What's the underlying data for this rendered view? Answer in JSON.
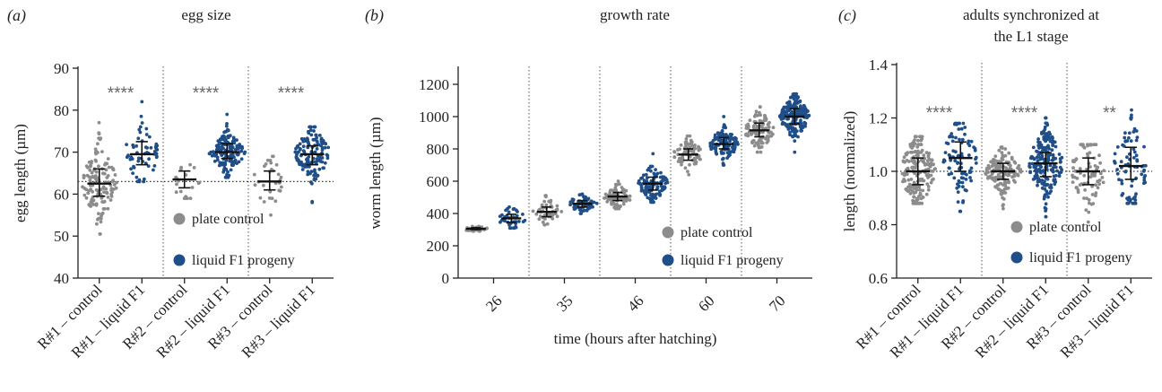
{
  "colors": {
    "control": "#8c8c8c",
    "liquid": "#1f4e88",
    "median": "#111111"
  },
  "legend": {
    "control": "plate control",
    "liquid": "liquid F1 progeny"
  },
  "chart_data": [
    {
      "panel": "(a)",
      "type": "scatter",
      "title": "egg size",
      "ylabel": "egg length (µm)",
      "xlabel": "",
      "ylim": [
        40,
        90
      ],
      "yticks": [
        40,
        50,
        60,
        70,
        80,
        90
      ],
      "reference_line": 63,
      "categories": [
        "R#1 – control",
        "R#1 – liquid F1",
        "R#2 – control",
        "R#2 – liquid F1",
        "R#3 – control",
        "R#3 – liquid F1"
      ],
      "groups": [
        {
          "label": "R#1 – control",
          "series": "control",
          "median": 62.5,
          "q1": 59.5,
          "q3": 66,
          "min": 50.5,
          "max": 77,
          "n": 140
        },
        {
          "label": "R#1 – liquid F1",
          "series": "liquid",
          "median": 69.5,
          "q1": 67,
          "q3": 72.5,
          "min": 63,
          "max": 82,
          "n": 60
        },
        {
          "label": "R#2 – control",
          "series": "control",
          "median": 63.5,
          "q1": 61.5,
          "q3": 65.5,
          "min": 59,
          "max": 67,
          "n": 20
        },
        {
          "label": "R#2 – liquid F1",
          "series": "liquid",
          "median": 70,
          "q1": 68.5,
          "q3": 72,
          "min": 64,
          "max": 79,
          "n": 150
        },
        {
          "label": "R#3 – control",
          "series": "control",
          "median": 63,
          "q1": 61,
          "q3": 65.5,
          "min": 55,
          "max": 69,
          "n": 30
        },
        {
          "label": "R#3 – liquid F1",
          "series": "liquid",
          "median": 69.5,
          "q1": 67,
          "q3": 71.5,
          "min": 58,
          "max": 76,
          "n": 150
        }
      ],
      "annotations": [
        "****",
        "****",
        "****"
      ],
      "separators_after": [
        2,
        4
      ]
    },
    {
      "panel": "(b)",
      "type": "scatter",
      "title": "growth rate",
      "ylabel": "worm length (µm)",
      "xlabel": "time (hours after hatching)",
      "ylim": [
        0,
        1300
      ],
      "yticks": [
        0,
        200,
        400,
        600,
        800,
        1000,
        1200
      ],
      "categories": [
        "26",
        "35",
        "46",
        "60",
        "70"
      ],
      "groups": [
        {
          "label": "26",
          "series": "control",
          "median": 305,
          "q1": 300,
          "q3": 312,
          "min": 290,
          "max": 320,
          "n": 30
        },
        {
          "label": "26",
          "series": "liquid",
          "median": 370,
          "q1": 345,
          "q3": 395,
          "min": 310,
          "max": 440,
          "n": 40
        },
        {
          "label": "35",
          "series": "control",
          "median": 410,
          "q1": 380,
          "q3": 440,
          "min": 330,
          "max": 510,
          "n": 50
        },
        {
          "label": "35",
          "series": "liquid",
          "median": 460,
          "q1": 440,
          "q3": 480,
          "min": 400,
          "max": 520,
          "n": 60
        },
        {
          "label": "46",
          "series": "control",
          "median": 505,
          "q1": 480,
          "q3": 530,
          "min": 430,
          "max": 600,
          "n": 90
        },
        {
          "label": "46",
          "series": "liquid",
          "median": 585,
          "q1": 545,
          "q3": 625,
          "min": 470,
          "max": 770,
          "n": 110
        },
        {
          "label": "60",
          "series": "control",
          "median": 765,
          "q1": 730,
          "q3": 800,
          "min": 640,
          "max": 880,
          "n": 80
        },
        {
          "label": "60",
          "series": "liquid",
          "median": 830,
          "q1": 800,
          "q3": 870,
          "min": 700,
          "max": 1000,
          "n": 120
        },
        {
          "label": "70",
          "series": "control",
          "median": 915,
          "q1": 875,
          "q3": 960,
          "min": 780,
          "max": 1060,
          "n": 110
        },
        {
          "label": "70",
          "series": "liquid",
          "median": 1000,
          "q1": 955,
          "q3": 1050,
          "min": 780,
          "max": 1140,
          "n": 200
        }
      ],
      "separators_after": [
        2,
        4,
        6,
        8
      ]
    },
    {
      "panel": "(c)",
      "type": "scatter",
      "title": "adults synchronized at the L1 stage",
      "ylabel": "length (normalized)",
      "xlabel": "",
      "ylim": [
        0.6,
        1.4
      ],
      "yticks": [
        0.6,
        0.8,
        1.0,
        1.2,
        1.4
      ],
      "reference_line": 1.0,
      "categories": [
        "R#1 – control",
        "R#1 – liquid F1",
        "R#2 – control",
        "R#2 – liquid F1",
        "R#3 – control",
        "R#3 – liquid F1"
      ],
      "groups": [
        {
          "label": "R#1 – control",
          "series": "control",
          "median": 1.0,
          "q1": 0.95,
          "q3": 1.05,
          "min": 0.88,
          "max": 1.13,
          "n": 200
        },
        {
          "label": "R#1 – liquid F1",
          "series": "liquid",
          "median": 1.05,
          "q1": 1.0,
          "q3": 1.11,
          "min": 0.85,
          "max": 1.18,
          "n": 90
        },
        {
          "label": "R#2 – control",
          "series": "control",
          "median": 1.0,
          "q1": 0.97,
          "q3": 1.03,
          "min": 0.86,
          "max": 1.09,
          "n": 160
        },
        {
          "label": "R#2 – liquid F1",
          "series": "liquid",
          "median": 1.03,
          "q1": 0.98,
          "q3": 1.07,
          "min": 0.83,
          "max": 1.2,
          "n": 200
        },
        {
          "label": "R#3 – control",
          "series": "control",
          "median": 1.0,
          "q1": 0.95,
          "q3": 1.05,
          "min": 0.81,
          "max": 1.1,
          "n": 80
        },
        {
          "label": "R#3 – liquid F1",
          "series": "liquid",
          "median": 1.02,
          "q1": 0.97,
          "q3": 1.09,
          "min": 0.88,
          "max": 1.23,
          "n": 80
        }
      ],
      "annotations": [
        "****",
        "****",
        "**"
      ],
      "separators_after": [
        2,
        4
      ]
    }
  ]
}
